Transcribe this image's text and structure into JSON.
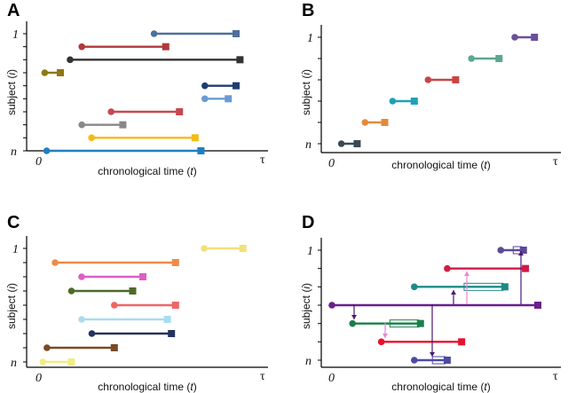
{
  "panels": [
    {
      "label": "A",
      "xlabel_text": "chronological time (",
      "xlabel_var": "t",
      "xlabel_close": ")",
      "ylabel_text": "subject (",
      "ylabel_var": "i",
      "ylabel_close": ")",
      "x_start": "0",
      "x_end": "τ",
      "y_top": "1",
      "y_bottom": "n",
      "intervals": [
        {
          "start": 0.58,
          "end": 1.0,
          "color": "#4e6f9c"
        },
        {
          "start": 0.21,
          "end": 0.64,
          "color": "#b0393b"
        },
        {
          "start": 0.15,
          "end": 1.02,
          "color": "#333333"
        },
        {
          "start": 0.02,
          "end": 0.1,
          "color": "#8e7814"
        },
        {
          "start": 0.84,
          "end": 1.0,
          "color": "#1f3d6e"
        },
        {
          "start": 0.84,
          "end": 0.96,
          "color": "#6b9ad6"
        },
        {
          "start": 0.36,
          "end": 0.71,
          "color": "#c9474f"
        },
        {
          "start": 0.21,
          "end": 0.42,
          "color": "#888888"
        },
        {
          "start": 0.26,
          "end": 0.79,
          "color": "#f2bb17"
        },
        {
          "start": 0.03,
          "end": 0.82,
          "color": "#1f7ec2"
        }
      ]
    },
    {
      "label": "B",
      "xlabel_text": "chronological time (",
      "xlabel_var": "t",
      "xlabel_close": ")",
      "ylabel_text": "subject (",
      "ylabel_var": "i",
      "ylabel_close": ")",
      "x_start": "0",
      "x_end": "τ",
      "y_top": "1",
      "y_bottom": "n",
      "intervals": [
        {
          "start": 0.91,
          "end": 1.01,
          "color": "#6b4f9a"
        },
        {
          "start": 0.69,
          "end": 0.83,
          "color": "#5aa88a"
        },
        {
          "start": 0.47,
          "end": 0.61,
          "color": "#c94545"
        },
        {
          "start": 0.29,
          "end": 0.4,
          "color": "#1fa0b8"
        },
        {
          "start": 0.15,
          "end": 0.25,
          "color": "#e38a3a"
        },
        {
          "start": 0.03,
          "end": 0.11,
          "color": "#3a4a55"
        }
      ]
    },
    {
      "label": "C",
      "xlabel_text": "chronological time (",
      "xlabel_var": "t",
      "xlabel_close": ")",
      "ylabel_text": "subject (",
      "ylabel_var": "i",
      "ylabel_close": ")",
      "x_start": "0",
      "x_end": "τ",
      "y_top": "1",
      "y_bottom": "n",
      "intervals": [
        {
          "start": 0.8,
          "end": 0.99,
          "color": "#f2e07a"
        },
        {
          "start": 0.07,
          "end": 0.66,
          "color": "#ef8a47"
        },
        {
          "start": 0.2,
          "end": 0.5,
          "color": "#e05cc4"
        },
        {
          "start": 0.15,
          "end": 0.45,
          "color": "#4e6a2a"
        },
        {
          "start": 0.36,
          "end": 0.66,
          "color": "#ef6563"
        },
        {
          "start": 0.2,
          "end": 0.62,
          "color": "#a9dcef"
        },
        {
          "start": 0.25,
          "end": 0.64,
          "color": "#253260"
        },
        {
          "start": 0.03,
          "end": 0.36,
          "color": "#7a4a24"
        },
        {
          "start": 0.01,
          "end": 0.15,
          "color": "#f1ec86"
        }
      ]
    },
    {
      "label": "D",
      "xlabel_text": "chronological time (",
      "xlabel_var": "t",
      "xlabel_close": ")",
      "ylabel_text": "subject (",
      "ylabel_var": "i",
      "ylabel_close": ")",
      "x_start": "0",
      "x_end": "τ",
      "y_top": "1",
      "y_bottom": "n",
      "intervals": [
        {
          "start": 0.82,
          "end": 0.93,
          "color": "#5a4a9a",
          "box": true
        },
        {
          "start": 0.56,
          "end": 0.94,
          "color": "#d11a46"
        },
        {
          "start": 0.4,
          "end": 0.84,
          "color": "#1b8b88",
          "box": true
        },
        {
          "start": 0.0,
          "end": 1.0,
          "color": "#6a1f8a"
        },
        {
          "start": 0.1,
          "end": 0.43,
          "color": "#18804a",
          "box": true
        },
        {
          "start": 0.24,
          "end": 0.63,
          "color": "#e8112d"
        },
        {
          "start": 0.4,
          "end": 0.56,
          "color": "#4e4aa3",
          "box": true
        }
      ]
    }
  ]
}
